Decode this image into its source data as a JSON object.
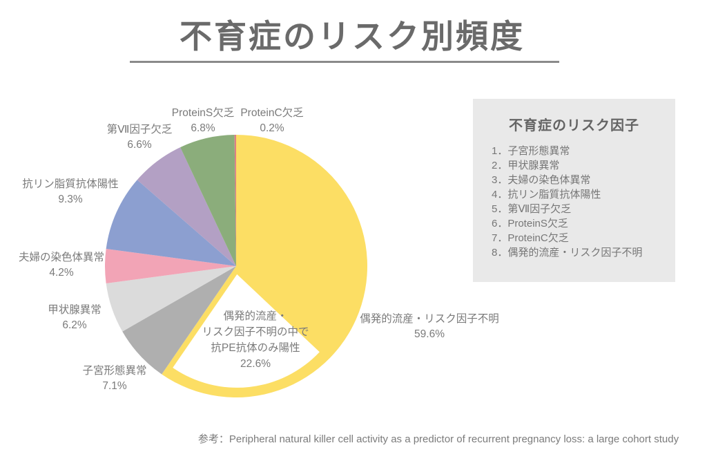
{
  "title": "不育症のリスク別頻度",
  "chart_data": {
    "type": "pie",
    "title": "不育症のリスク別頻度",
    "unit": "%",
    "direction": "clockwise",
    "start_angle_deg": 0,
    "slices": [
      {
        "label": "偶発的流産・リスク因子不明",
        "value": 59.6,
        "color": "#FCDE64"
      },
      {
        "label": "子宮形態異常",
        "value": 7.1,
        "color": "#AFAFAF"
      },
      {
        "label": "甲状腺異常",
        "value": 6.2,
        "color": "#DBDBDB"
      },
      {
        "label": "夫婦の染色体異常",
        "value": 4.2,
        "color": "#F2A4B6"
      },
      {
        "label": "抗リン脂質抗体陽性",
        "value": 9.3,
        "color": "#8C9FD0"
      },
      {
        "label": "第Ⅶ因子欠乏",
        "value": 6.6,
        "color": "#B3A0C4"
      },
      {
        "label": "ProteinS欠乏",
        "value": 6.8,
        "color": "#8BAD7B"
      },
      {
        "label": "ProteinC欠乏",
        "value": 0.2,
        "color": "#DC8084"
      }
    ],
    "highlight_sub_slice": {
      "label": "偶発的流産・リスク因子不明の中で抗PE抗体のみ陽性",
      "label_lines": [
        "偶発的流産・",
        "リスク因子不明の中で",
        "抗PE抗体のみ陽性"
      ],
      "pct_text": "22.6%",
      "value": 22.6,
      "start_pct": 37.0,
      "sub_slice_of": "偶発的流産・リスク因子不明",
      "color": "#FFFFFF"
    }
  },
  "pie_labels": [
    {
      "name": "ProteinS欠乏",
      "pct": "6.8%"
    },
    {
      "name": "ProteinC欠乏",
      "pct": "0.2%"
    },
    {
      "name": "第Ⅶ因子欠乏",
      "pct": "6.6%"
    },
    {
      "name": "抗リン脂質抗体陽性",
      "pct": "9.3%"
    },
    {
      "name": "夫婦の染色体異常",
      "pct": "4.2%"
    },
    {
      "name": "甲状腺異常",
      "pct": "6.2%"
    },
    {
      "name": "子宮形態異常",
      "pct": "7.1%"
    },
    {
      "name": "偶発的流産・リスク因子不明",
      "pct": "59.6%"
    }
  ],
  "legend": {
    "title": "不育症のリスク因子",
    "items": [
      "1．子宮形態異常",
      "2．甲状腺異常",
      "3．夫婦の染色体異常",
      "4．抗リン脂質抗体陽性",
      "5．第Ⅶ因子欠乏",
      "6．ProteinS欠乏",
      "7．ProteinC欠乏",
      "8．偶発的流産・リスク因子不明"
    ]
  },
  "reference": "参考：Peripheral natural killer cell activity as a predictor of recurrent pregnancy loss: a large cohort study"
}
